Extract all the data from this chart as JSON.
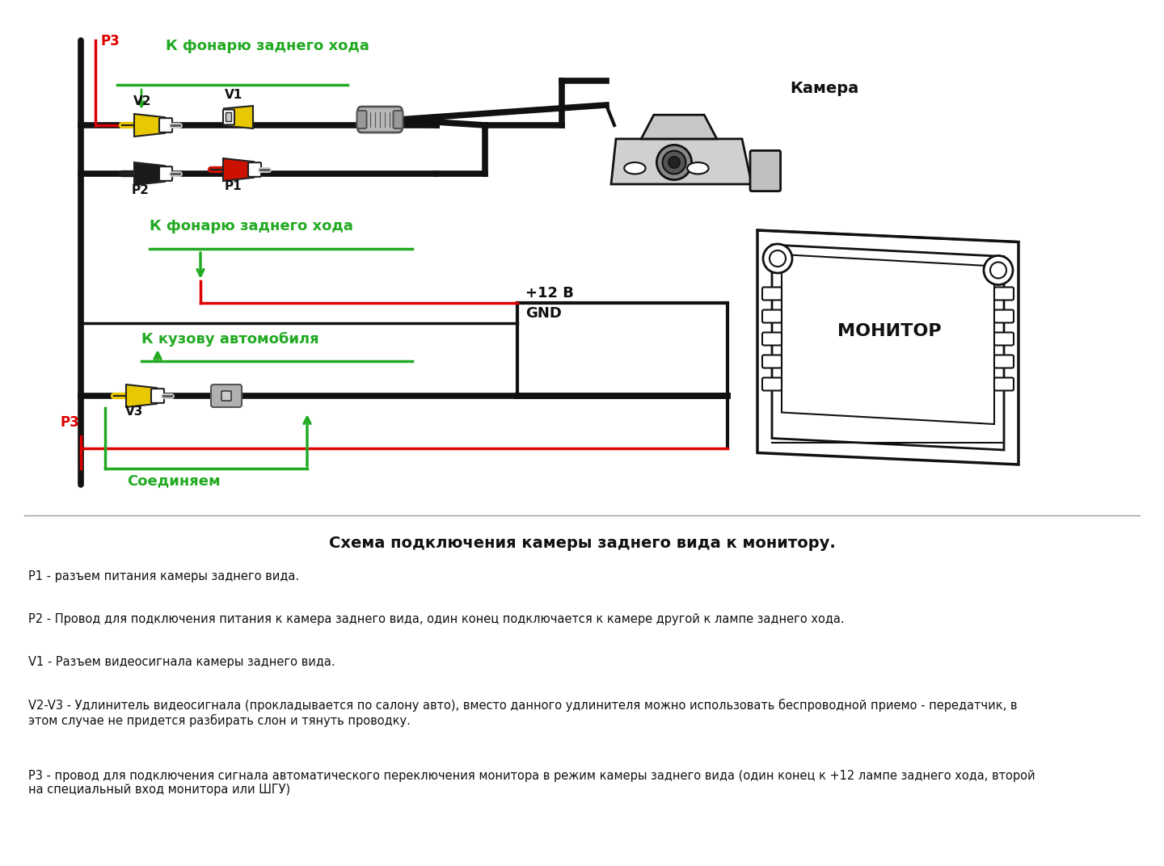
{
  "bg_color": "#ffffff",
  "green_label1": "К фонарю заднего хода",
  "green_label2": "К фонарю заднего хода",
  "green_label3": "К кузову автомобиля",
  "green_label4": "Соединяем",
  "camera_label": "Камера",
  "monitor_label": "МОНИТОР",
  "plus12_label": "+12 В",
  "gnd_label": "GND",
  "p1_label": "P1",
  "p2_label": "P2",
  "p3_label": "P3",
  "v1_label": "V1",
  "v2_label": "V2",
  "v3_label": "V3",
  "title": "Схема подключения камеры заднего вида к монитору.",
  "desc1": "Р1 - разъем питания камеры заднего вида.",
  "desc2": "Р2 - Провод для подключения питания к камера заднего вида, один конец подключается к камере другой к лампе заднего хода.",
  "desc3": "V1 - Разъем видеосигнала камеры заднего вида.",
  "desc4": "V2-V3 - Удлинитель видеосигнала (прокладывается по салону авто), вместо данного удлинителя можно использовать беспроводной приемо - передатчик, в\nэтом случае не придется разбирать слон и тянуть проводку.",
  "desc5": "Р3 - провод для подключения сигнала автоматического переключения монитора в режим камеры заднего вида (один конец к +12 лампе заднего хода, второй\nна специальный вход монитора или ШГУ)"
}
